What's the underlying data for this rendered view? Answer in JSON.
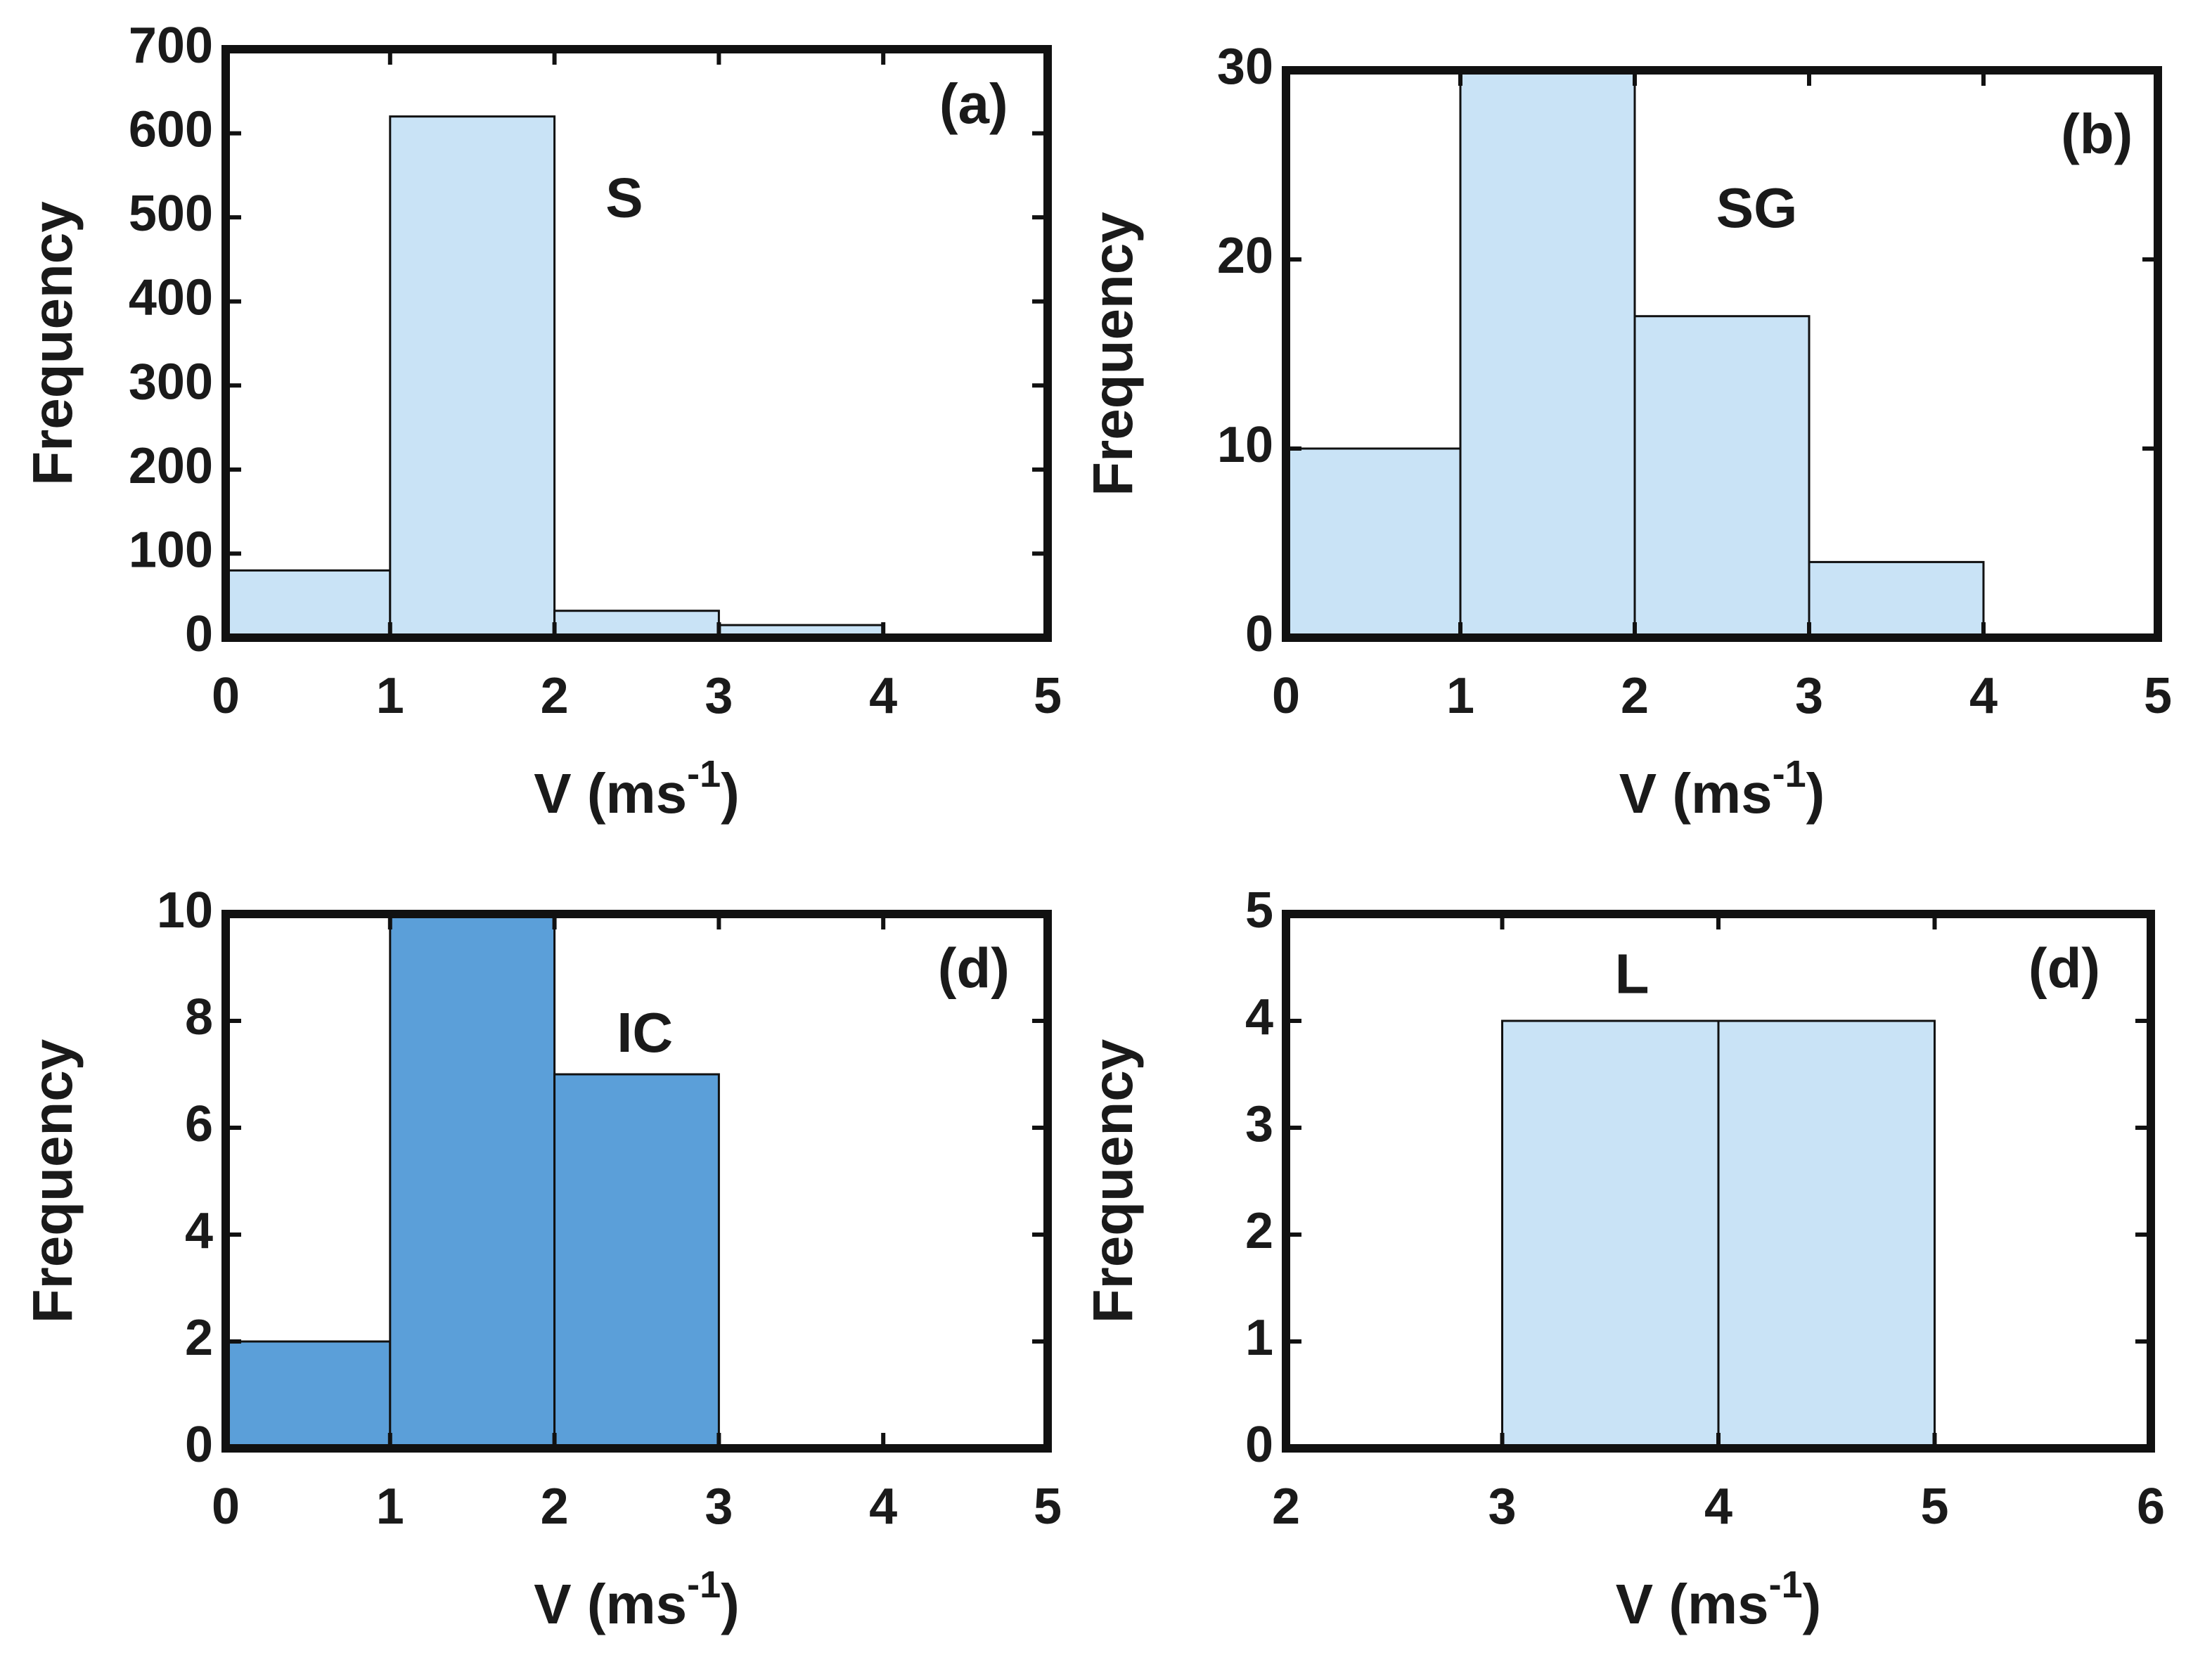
{
  "chart_data": [
    {
      "type": "histogram",
      "ylabel": "Frequency",
      "xlabel": [
        "V (ms",
        "-1",
        ")"
      ],
      "annotations": [
        "(a)",
        "S"
      ],
      "bins": [
        0,
        1,
        2,
        3,
        4
      ],
      "values": [
        80,
        620,
        32,
        15
      ],
      "color": "#c9e3f6",
      "xlim": [
        0,
        5
      ],
      "xticks": [
        0,
        1,
        2,
        3,
        4,
        5
      ],
      "ylim": [
        0,
        700
      ],
      "yticks": [
        0,
        100,
        200,
        300,
        400,
        500,
        600,
        700
      ]
    },
    {
      "type": "histogram",
      "ylabel": "Frequency",
      "xlabel": [
        "V (ms",
        "-1",
        ")"
      ],
      "annotations": [
        "(b)",
        "SG"
      ],
      "bins": [
        0,
        1,
        2,
        3,
        4
      ],
      "values": [
        10,
        30,
        17,
        4
      ],
      "color": "#c9e3f6",
      "xlim": [
        0,
        5
      ],
      "xticks": [
        0,
        1,
        2,
        3,
        4,
        5
      ],
      "ylim": [
        0,
        30
      ],
      "yticks": [
        0,
        10,
        20,
        30
      ]
    },
    {
      "type": "histogram",
      "ylabel": "Frequency",
      "xlabel": [
        "V (ms",
        "-1",
        ")"
      ],
      "annotations": [
        "(d)",
        "IC"
      ],
      "bins": [
        0,
        1,
        2,
        3
      ],
      "values": [
        2,
        10,
        7
      ],
      "color": "#5b9fd9",
      "xlim": [
        0,
        5
      ],
      "xticks": [
        0,
        1,
        2,
        3,
        4,
        5
      ],
      "ylim": [
        0,
        10
      ],
      "yticks": [
        0,
        2,
        4,
        6,
        8,
        10
      ]
    },
    {
      "type": "histogram",
      "ylabel": "Frequency",
      "xlabel": [
        "V (ms",
        "-1",
        ")"
      ],
      "annotations": [
        "L",
        "(d)"
      ],
      "bins": [
        3,
        4,
        5
      ],
      "values": [
        4,
        4
      ],
      "color": "#c9e3f6",
      "xlim": [
        2,
        6
      ],
      "xticks": [
        2,
        3,
        4,
        5,
        6
      ],
      "ylim": [
        0,
        5
      ],
      "yticks": [
        0,
        1,
        2,
        3,
        4,
        5
      ]
    }
  ]
}
